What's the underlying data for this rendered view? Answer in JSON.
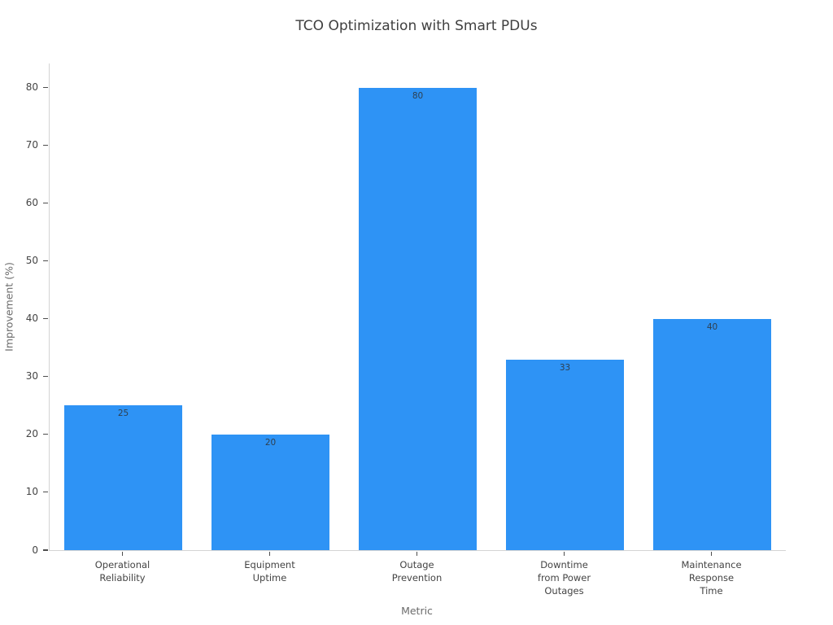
{
  "chart_data": {
    "type": "bar",
    "title": "TCO Optimization with Smart PDUs",
    "xlabel": "Metric",
    "ylabel": "Improvement (%)",
    "categories": [
      [
        "Operational",
        "Reliability"
      ],
      [
        "Equipment",
        "Uptime"
      ],
      [
        "Outage",
        "Prevention"
      ],
      [
        "Downtime",
        "from Power",
        "Outages"
      ],
      [
        "Maintenance",
        "Response",
        "Time"
      ]
    ],
    "values": [
      25,
      20,
      80,
      33,
      40
    ],
    "value_labels": [
      25,
      20,
      80,
      33,
      40
    ],
    "value_label_position": "inside-top",
    "bar_color": "#2E93F5",
    "ylim": [
      0,
      84.2
    ],
    "yticks": [
      0,
      10,
      20,
      30,
      40,
      50,
      60,
      70,
      80
    ],
    "grid": false,
    "legend": "none",
    "background_color": "#ffffff",
    "axis_line_color": "#d4d4d4",
    "tick_color": "#4d4d4d",
    "text_color": "#444444"
  }
}
